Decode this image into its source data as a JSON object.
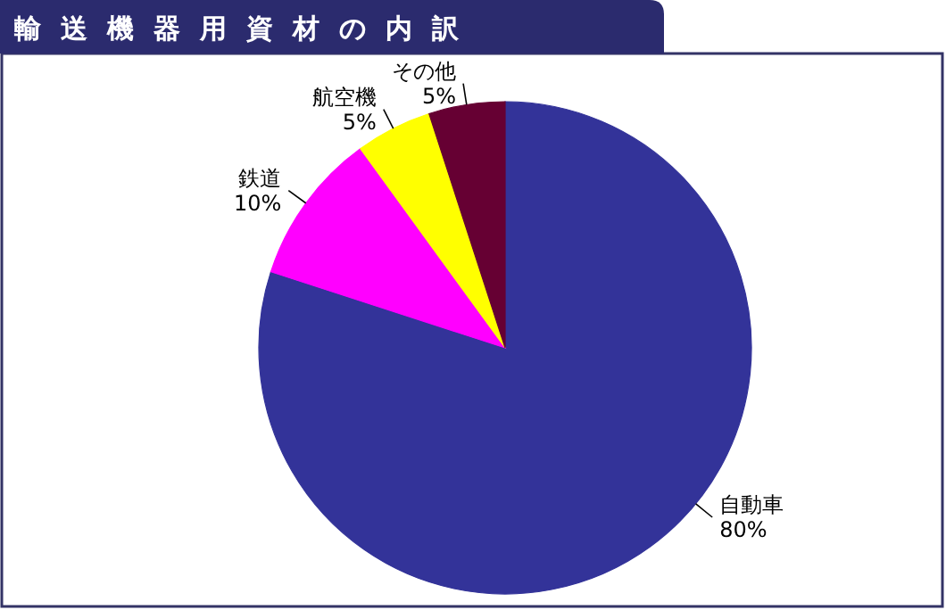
{
  "chart_data": {
    "type": "pie",
    "title": "輸送機器用資材の内訳",
    "categories": [
      "自動車",
      "鉄道",
      "航空機",
      "その他"
    ],
    "values": [
      80,
      10,
      5,
      5
    ],
    "colors": [
      "#333399",
      "#ff00ff",
      "#ffff00",
      "#660033"
    ],
    "value_labels": [
      "80%",
      "10%",
      "5%",
      "5%"
    ]
  }
}
